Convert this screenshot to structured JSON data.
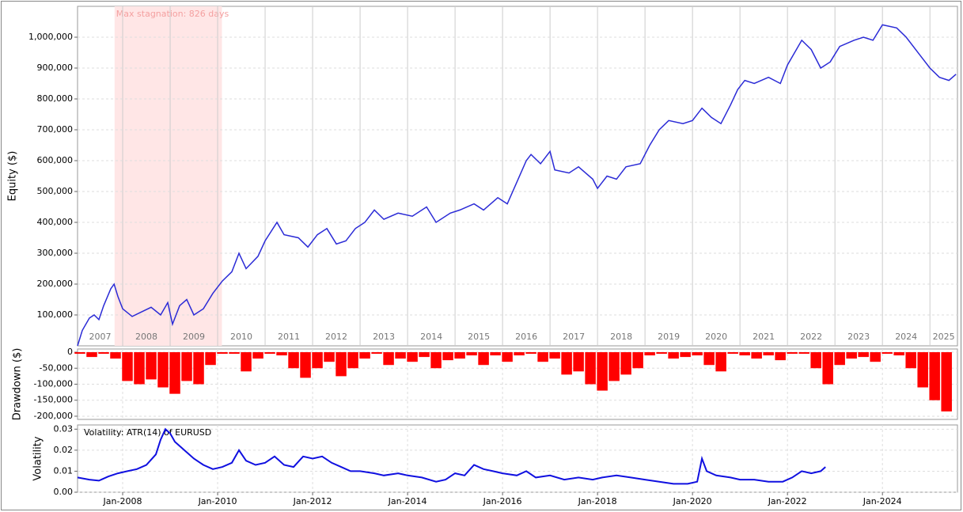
{
  "chart_data": [
    {
      "type": "line",
      "ylabel": "Equity ($)",
      "color": "#2b2bd6",
      "xlim": [
        2007.05,
        2025.58
      ],
      "ylim": [
        0,
        1100000
      ],
      "yticks": [
        {
          "value": 100000,
          "label": "100,000"
        },
        {
          "value": 200000,
          "label": "200,000"
        },
        {
          "value": 300000,
          "label": "300,000"
        },
        {
          "value": 400000,
          "label": "400,000"
        },
        {
          "value": 500000,
          "label": "500,000"
        },
        {
          "value": 600000,
          "label": "600,000"
        },
        {
          "value": 700000,
          "label": "700,000"
        },
        {
          "value": 800000,
          "label": "800,000"
        },
        {
          "value": 900000,
          "label": "900,000"
        },
        {
          "value": 1000000,
          "label": "1,000,000"
        }
      ],
      "year_bands": [
        2007,
        2008,
        2009,
        2010,
        2011,
        2012,
        2013,
        2014,
        2015,
        2016,
        2017,
        2018,
        2019,
        2020,
        2021,
        2022,
        2023,
        2024,
        2025
      ],
      "stagnation": {
        "label": "Max stagnation: 826 days",
        "start": 2007.83,
        "end": 2010.09
      },
      "grid": true,
      "x": [
        2007.05,
        2007.15,
        2007.3,
        2007.4,
        2007.5,
        2007.6,
        2007.75,
        2007.82,
        2007.9,
        2008.0,
        2008.2,
        2008.4,
        2008.6,
        2008.8,
        2008.95,
        2009.05,
        2009.2,
        2009.35,
        2009.5,
        2009.7,
        2009.9,
        2010.1,
        2010.3,
        2010.45,
        2010.6,
        2010.85,
        2011.0,
        2011.25,
        2011.4,
        2011.7,
        2011.9,
        2012.1,
        2012.3,
        2012.5,
        2012.7,
        2012.9,
        2013.1,
        2013.3,
        2013.5,
        2013.8,
        2014.1,
        2014.4,
        2014.6,
        2014.9,
        2015.1,
        2015.4,
        2015.6,
        2015.9,
        2016.1,
        2016.3,
        2016.5,
        2016.6,
        2016.8,
        2017.0,
        2017.1,
        2017.4,
        2017.6,
        2017.9,
        2018.0,
        2018.2,
        2018.4,
        2018.6,
        2018.9,
        2019.1,
        2019.3,
        2019.5,
        2019.8,
        2020.0,
        2020.2,
        2020.4,
        2020.6,
        2020.8,
        2020.95,
        2021.1,
        2021.3,
        2021.6,
        2021.85,
        2022.0,
        2022.3,
        2022.5,
        2022.7,
        2022.9,
        2023.1,
        2023.4,
        2023.6,
        2023.8,
        2024.0,
        2024.3,
        2024.5,
        2024.8,
        2025.0,
        2025.2,
        2025.4,
        2025.55
      ],
      "values": [
        0,
        50000,
        90000,
        100000,
        85000,
        130000,
        185000,
        200000,
        160000,
        120000,
        95000,
        110000,
        125000,
        100000,
        140000,
        70000,
        130000,
        150000,
        100000,
        120000,
        170000,
        210000,
        240000,
        300000,
        250000,
        290000,
        340000,
        400000,
        360000,
        350000,
        320000,
        360000,
        380000,
        330000,
        340000,
        380000,
        400000,
        440000,
        410000,
        430000,
        420000,
        450000,
        400000,
        430000,
        440000,
        460000,
        440000,
        480000,
        460000,
        530000,
        600000,
        620000,
        590000,
        630000,
        570000,
        560000,
        580000,
        540000,
        510000,
        550000,
        540000,
        580000,
        590000,
        650000,
        700000,
        730000,
        720000,
        730000,
        770000,
        740000,
        720000,
        780000,
        830000,
        860000,
        850000,
        870000,
        850000,
        910000,
        990000,
        960000,
        900000,
        920000,
        970000,
        990000,
        1000000,
        990000,
        1040000,
        1030000,
        1000000,
        940000,
        900000,
        870000,
        860000,
        880000
      ]
    },
    {
      "type": "bar",
      "ylabel": "Drawdown ($)",
      "color": "#ff0000",
      "xlim": [
        2007.05,
        2025.58
      ],
      "ylim": [
        -210000,
        10000
      ],
      "yticks": [
        0,
        {
          "value": -50000,
          "label": "-50,000"
        },
        {
          "value": -100000,
          "label": "-100,000"
        },
        {
          "value": -150000,
          "label": "-150,000"
        },
        {
          "value": -200000,
          "label": "-200,000"
        }
      ],
      "grid": true,
      "x": [
        2007.1,
        2007.35,
        2007.6,
        2007.85,
        2008.1,
        2008.35,
        2008.6,
        2008.85,
        2009.1,
        2009.35,
        2009.6,
        2009.85,
        2010.1,
        2010.35,
        2010.6,
        2010.85,
        2011.1,
        2011.35,
        2011.6,
        2011.85,
        2012.1,
        2012.35,
        2012.6,
        2012.85,
        2013.1,
        2013.35,
        2013.6,
        2013.85,
        2014.1,
        2014.35,
        2014.6,
        2014.85,
        2015.1,
        2015.35,
        2015.6,
        2015.85,
        2016.1,
        2016.35,
        2016.6,
        2016.85,
        2017.1,
        2017.35,
        2017.6,
        2017.85,
        2018.1,
        2018.35,
        2018.6,
        2018.85,
        2019.1,
        2019.35,
        2019.6,
        2019.85,
        2020.1,
        2020.35,
        2020.6,
        2020.85,
        2021.1,
        2021.35,
        2021.6,
        2021.85,
        2022.1,
        2022.35,
        2022.6,
        2022.85,
        2023.1,
        2023.35,
        2023.6,
        2023.85,
        2024.1,
        2024.35,
        2024.6,
        2024.85,
        2025.1,
        2025.35
      ],
      "values": [
        -5000,
        -15000,
        -5000,
        -20000,
        -90000,
        -100000,
        -85000,
        -110000,
        -130000,
        -90000,
        -100000,
        -40000,
        -5000,
        -5000,
        -60000,
        -20000,
        -5000,
        -10000,
        -50000,
        -80000,
        -50000,
        -30000,
        -75000,
        -50000,
        -20000,
        -5000,
        -40000,
        -20000,
        -30000,
        -15000,
        -50000,
        -25000,
        -20000,
        -10000,
        -40000,
        -10000,
        -30000,
        -10000,
        -5000,
        -30000,
        -20000,
        -70000,
        -60000,
        -100000,
        -120000,
        -90000,
        -70000,
        -50000,
        -10000,
        -5000,
        -20000,
        -15000,
        -10000,
        -40000,
        -60000,
        -5000,
        -10000,
        -20000,
        -10000,
        -25000,
        -5000,
        -5000,
        -50000,
        -100000,
        -40000,
        -20000,
        -15000,
        -30000,
        -5000,
        -10000,
        -50000,
        -110000,
        -150000,
        -185000
      ]
    },
    {
      "type": "line",
      "title": "Volatility: ATR(14) of EURUSD",
      "ylabel": "Volatility",
      "color": "#1010e0",
      "xlim": [
        2007.05,
        2025.58
      ],
      "ylim": [
        0,
        0.032
      ],
      "yticks": [
        {
          "value": 0,
          "label": "0.00"
        },
        {
          "value": 0.01,
          "label": "0.01"
        },
        {
          "value": 0.02,
          "label": "0.02"
        },
        {
          "value": 0.03,
          "label": "0.03"
        }
      ],
      "xticks": [
        {
          "value": 2008,
          "label": "Jan-2008"
        },
        {
          "value": 2010,
          "label": "Jan-2010"
        },
        {
          "value": 2012,
          "label": "Jan-2012"
        },
        {
          "value": 2014,
          "label": "Jan-2014"
        },
        {
          "value": 2016,
          "label": "Jan-2016"
        },
        {
          "value": 2018,
          "label": "Jan-2018"
        },
        {
          "value": 2020,
          "label": "Jan-2020"
        },
        {
          "value": 2022,
          "label": "Jan-2022"
        },
        {
          "value": 2024,
          "label": "Jan-2024"
        }
      ],
      "grid": true,
      "x": [
        2007.05,
        2007.3,
        2007.5,
        2007.7,
        2007.9,
        2008.1,
        2008.3,
        2008.5,
        2008.7,
        2008.8,
        2008.9,
        2009.0,
        2009.1,
        2009.3,
        2009.5,
        2009.7,
        2009.9,
        2010.1,
        2010.3,
        2010.45,
        2010.6,
        2010.8,
        2011.0,
        2011.2,
        2011.4,
        2011.6,
        2011.8,
        2012.0,
        2012.2,
        2012.4,
        2012.6,
        2012.8,
        2013.0,
        2013.3,
        2013.5,
        2013.8,
        2014.0,
        2014.3,
        2014.6,
        2014.8,
        2015.0,
        2015.2,
        2015.4,
        2015.6,
        2015.8,
        2016.0,
        2016.3,
        2016.5,
        2016.7,
        2017.0,
        2017.3,
        2017.6,
        2017.9,
        2018.1,
        2018.4,
        2018.7,
        2019.0,
        2019.3,
        2019.6,
        2019.9,
        2020.1,
        2020.2,
        2020.3,
        2020.5,
        2020.8,
        2021.0,
        2021.3,
        2021.6,
        2021.9,
        2022.1,
        2022.3,
        2022.5,
        2022.7,
        2022.8
      ],
      "values": [
        0.007,
        0.006,
        0.0055,
        0.0075,
        0.009,
        0.01,
        0.011,
        0.013,
        0.018,
        0.025,
        0.03,
        0.028,
        0.024,
        0.02,
        0.016,
        0.013,
        0.011,
        0.012,
        0.014,
        0.02,
        0.015,
        0.013,
        0.014,
        0.017,
        0.013,
        0.012,
        0.017,
        0.016,
        0.017,
        0.014,
        0.012,
        0.01,
        0.01,
        0.009,
        0.008,
        0.009,
        0.008,
        0.007,
        0.005,
        0.006,
        0.009,
        0.008,
        0.013,
        0.011,
        0.01,
        0.009,
        0.008,
        0.01,
        0.007,
        0.008,
        0.006,
        0.007,
        0.006,
        0.007,
        0.008,
        0.007,
        0.006,
        0.005,
        0.004,
        0.004,
        0.005,
        0.016,
        0.01,
        0.008,
        0.007,
        0.006,
        0.006,
        0.005,
        0.005,
        0.007,
        0.01,
        0.009,
        0.01,
        0.012
      ]
    }
  ]
}
